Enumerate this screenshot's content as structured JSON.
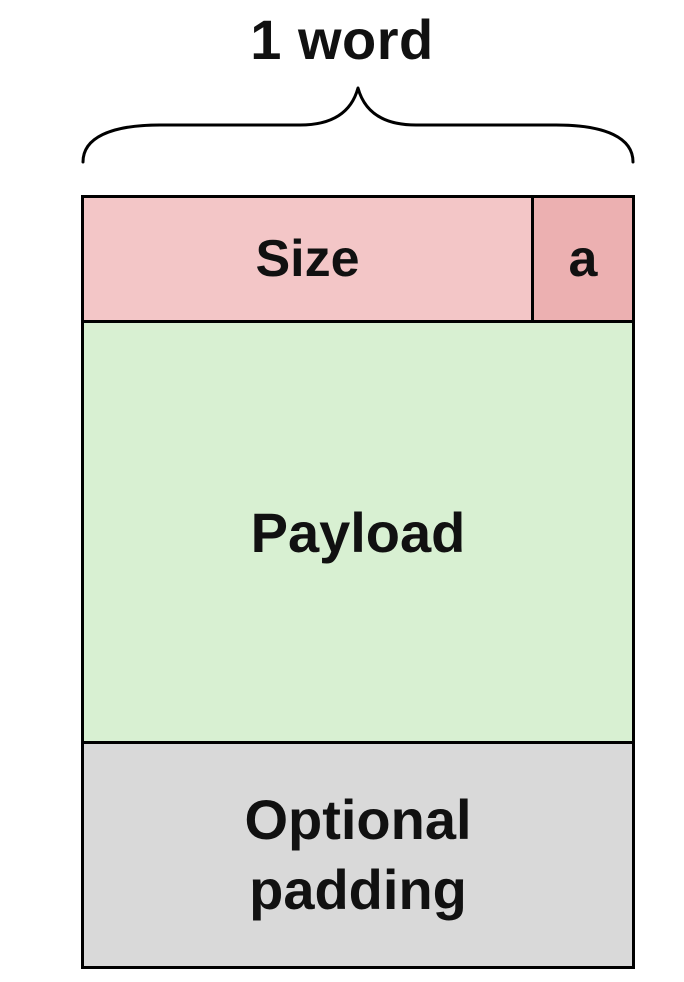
{
  "title": "1 word",
  "block": {
    "size_label": "Size",
    "alloc_label": "a",
    "payload_label": "Payload",
    "padding_label_line1": "Optional",
    "padding_label_line2": "padding"
  },
  "colors": {
    "size_fill": "#f3c6c7",
    "alloc_fill": "#ecb0b1",
    "payload_fill": "#d8f0d2",
    "padding_fill": "#d9d9d9",
    "stroke": "#000000"
  },
  "icons": {
    "brace": "curly-brace-icon"
  }
}
